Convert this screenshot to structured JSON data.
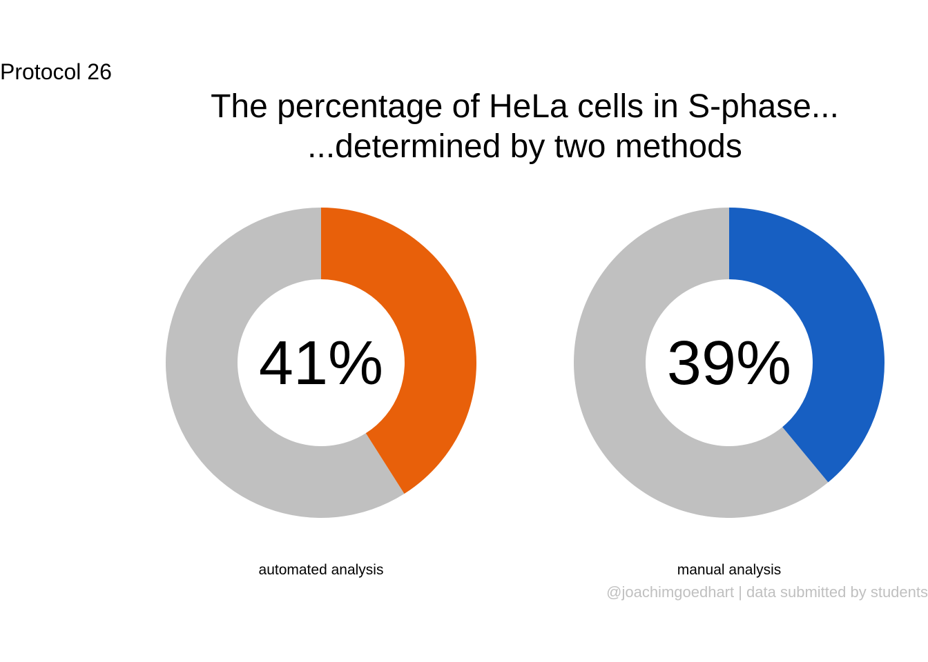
{
  "tag": "Protocol 26",
  "title_line1": "The percentage of HeLa cells in S-phase...",
  "title_line2": "...determined by two methods",
  "credit": "@joachimgoedhart | data submitted by students",
  "chart_data": {
    "type": "pie",
    "subtype": "donut",
    "title": "The percentage of HeLa cells in S-phase... ...determined by two methods",
    "remainder_color": "#c0c0c0",
    "charts": [
      {
        "category": "automated analysis",
        "value": 41,
        "label": "41%",
        "color": "#e8600a"
      },
      {
        "category": "manual analysis",
        "value": 39,
        "label": "39%",
        "color": "#175fc2"
      }
    ]
  }
}
